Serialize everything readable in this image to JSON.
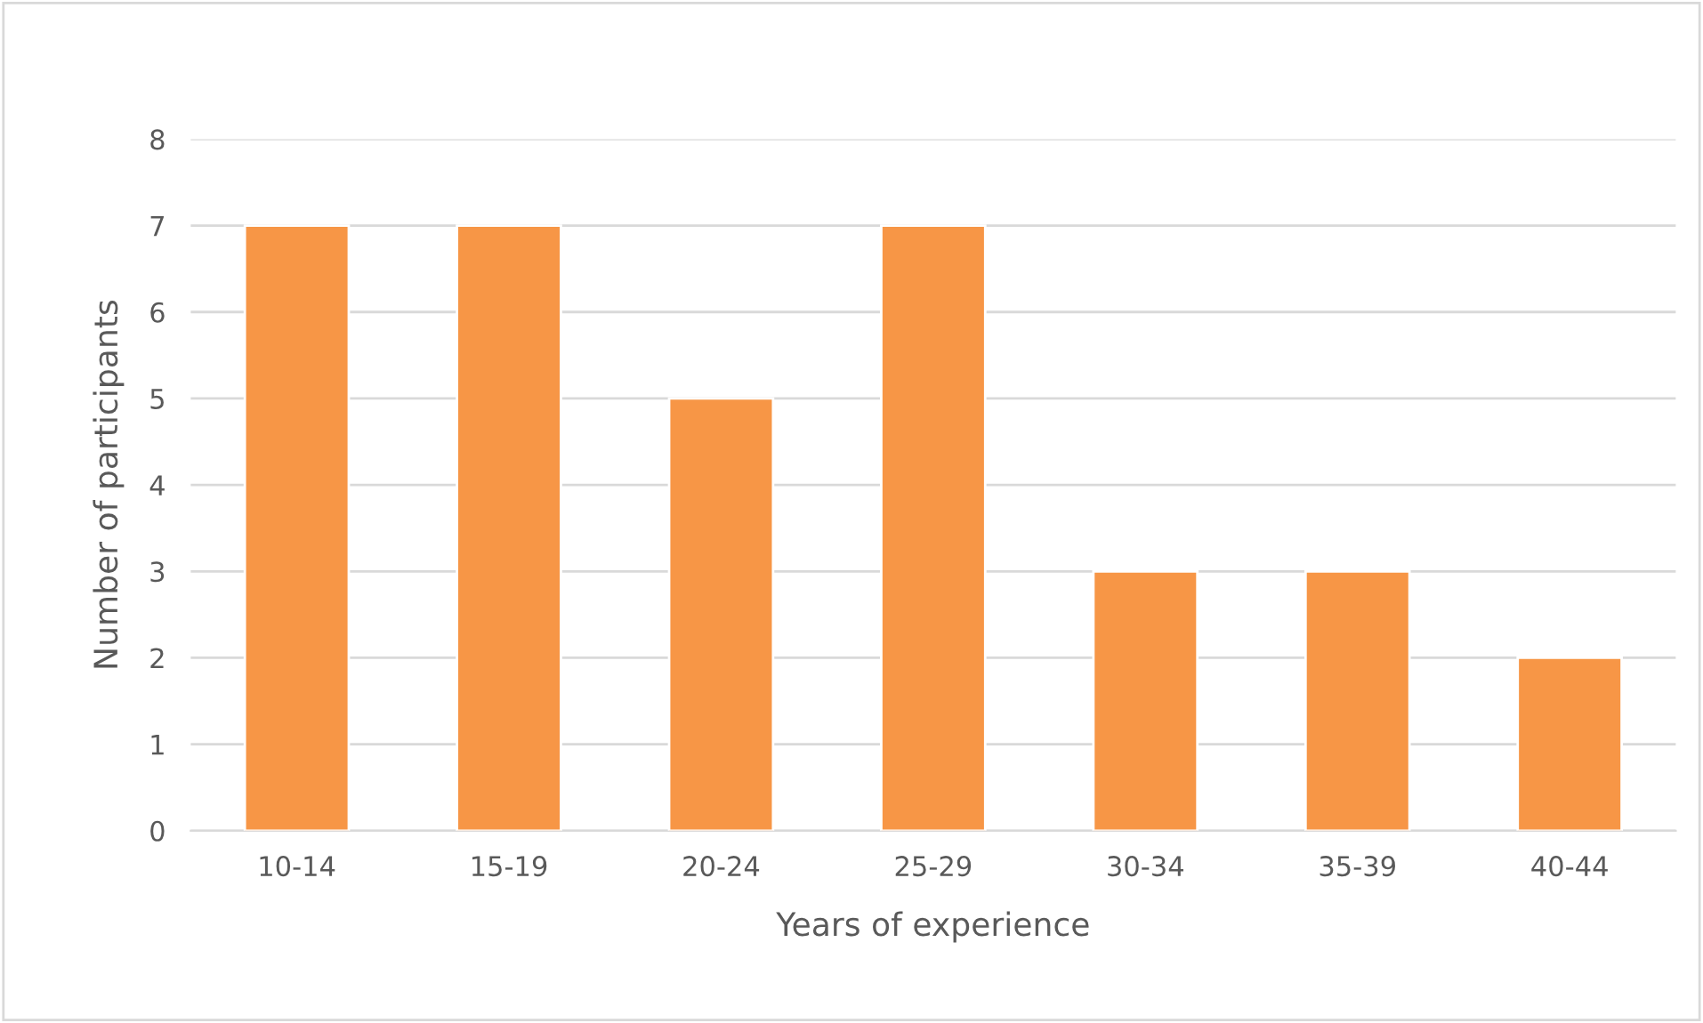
{
  "chart_data": {
    "type": "bar",
    "xlabel": "Years of experience",
    "ylabel": "Number of participants",
    "categories": [
      "10-14",
      "15-19",
      "20-24",
      "25-29",
      "30-34",
      "35-39",
      "40-44"
    ],
    "values": [
      7,
      7,
      5,
      7,
      3,
      3,
      2
    ],
    "color": "#f79646",
    "ylim": [
      0,
      8
    ],
    "yticks": [
      0,
      1,
      2,
      3,
      4,
      5,
      6,
      7,
      8
    ],
    "grid": "y"
  }
}
